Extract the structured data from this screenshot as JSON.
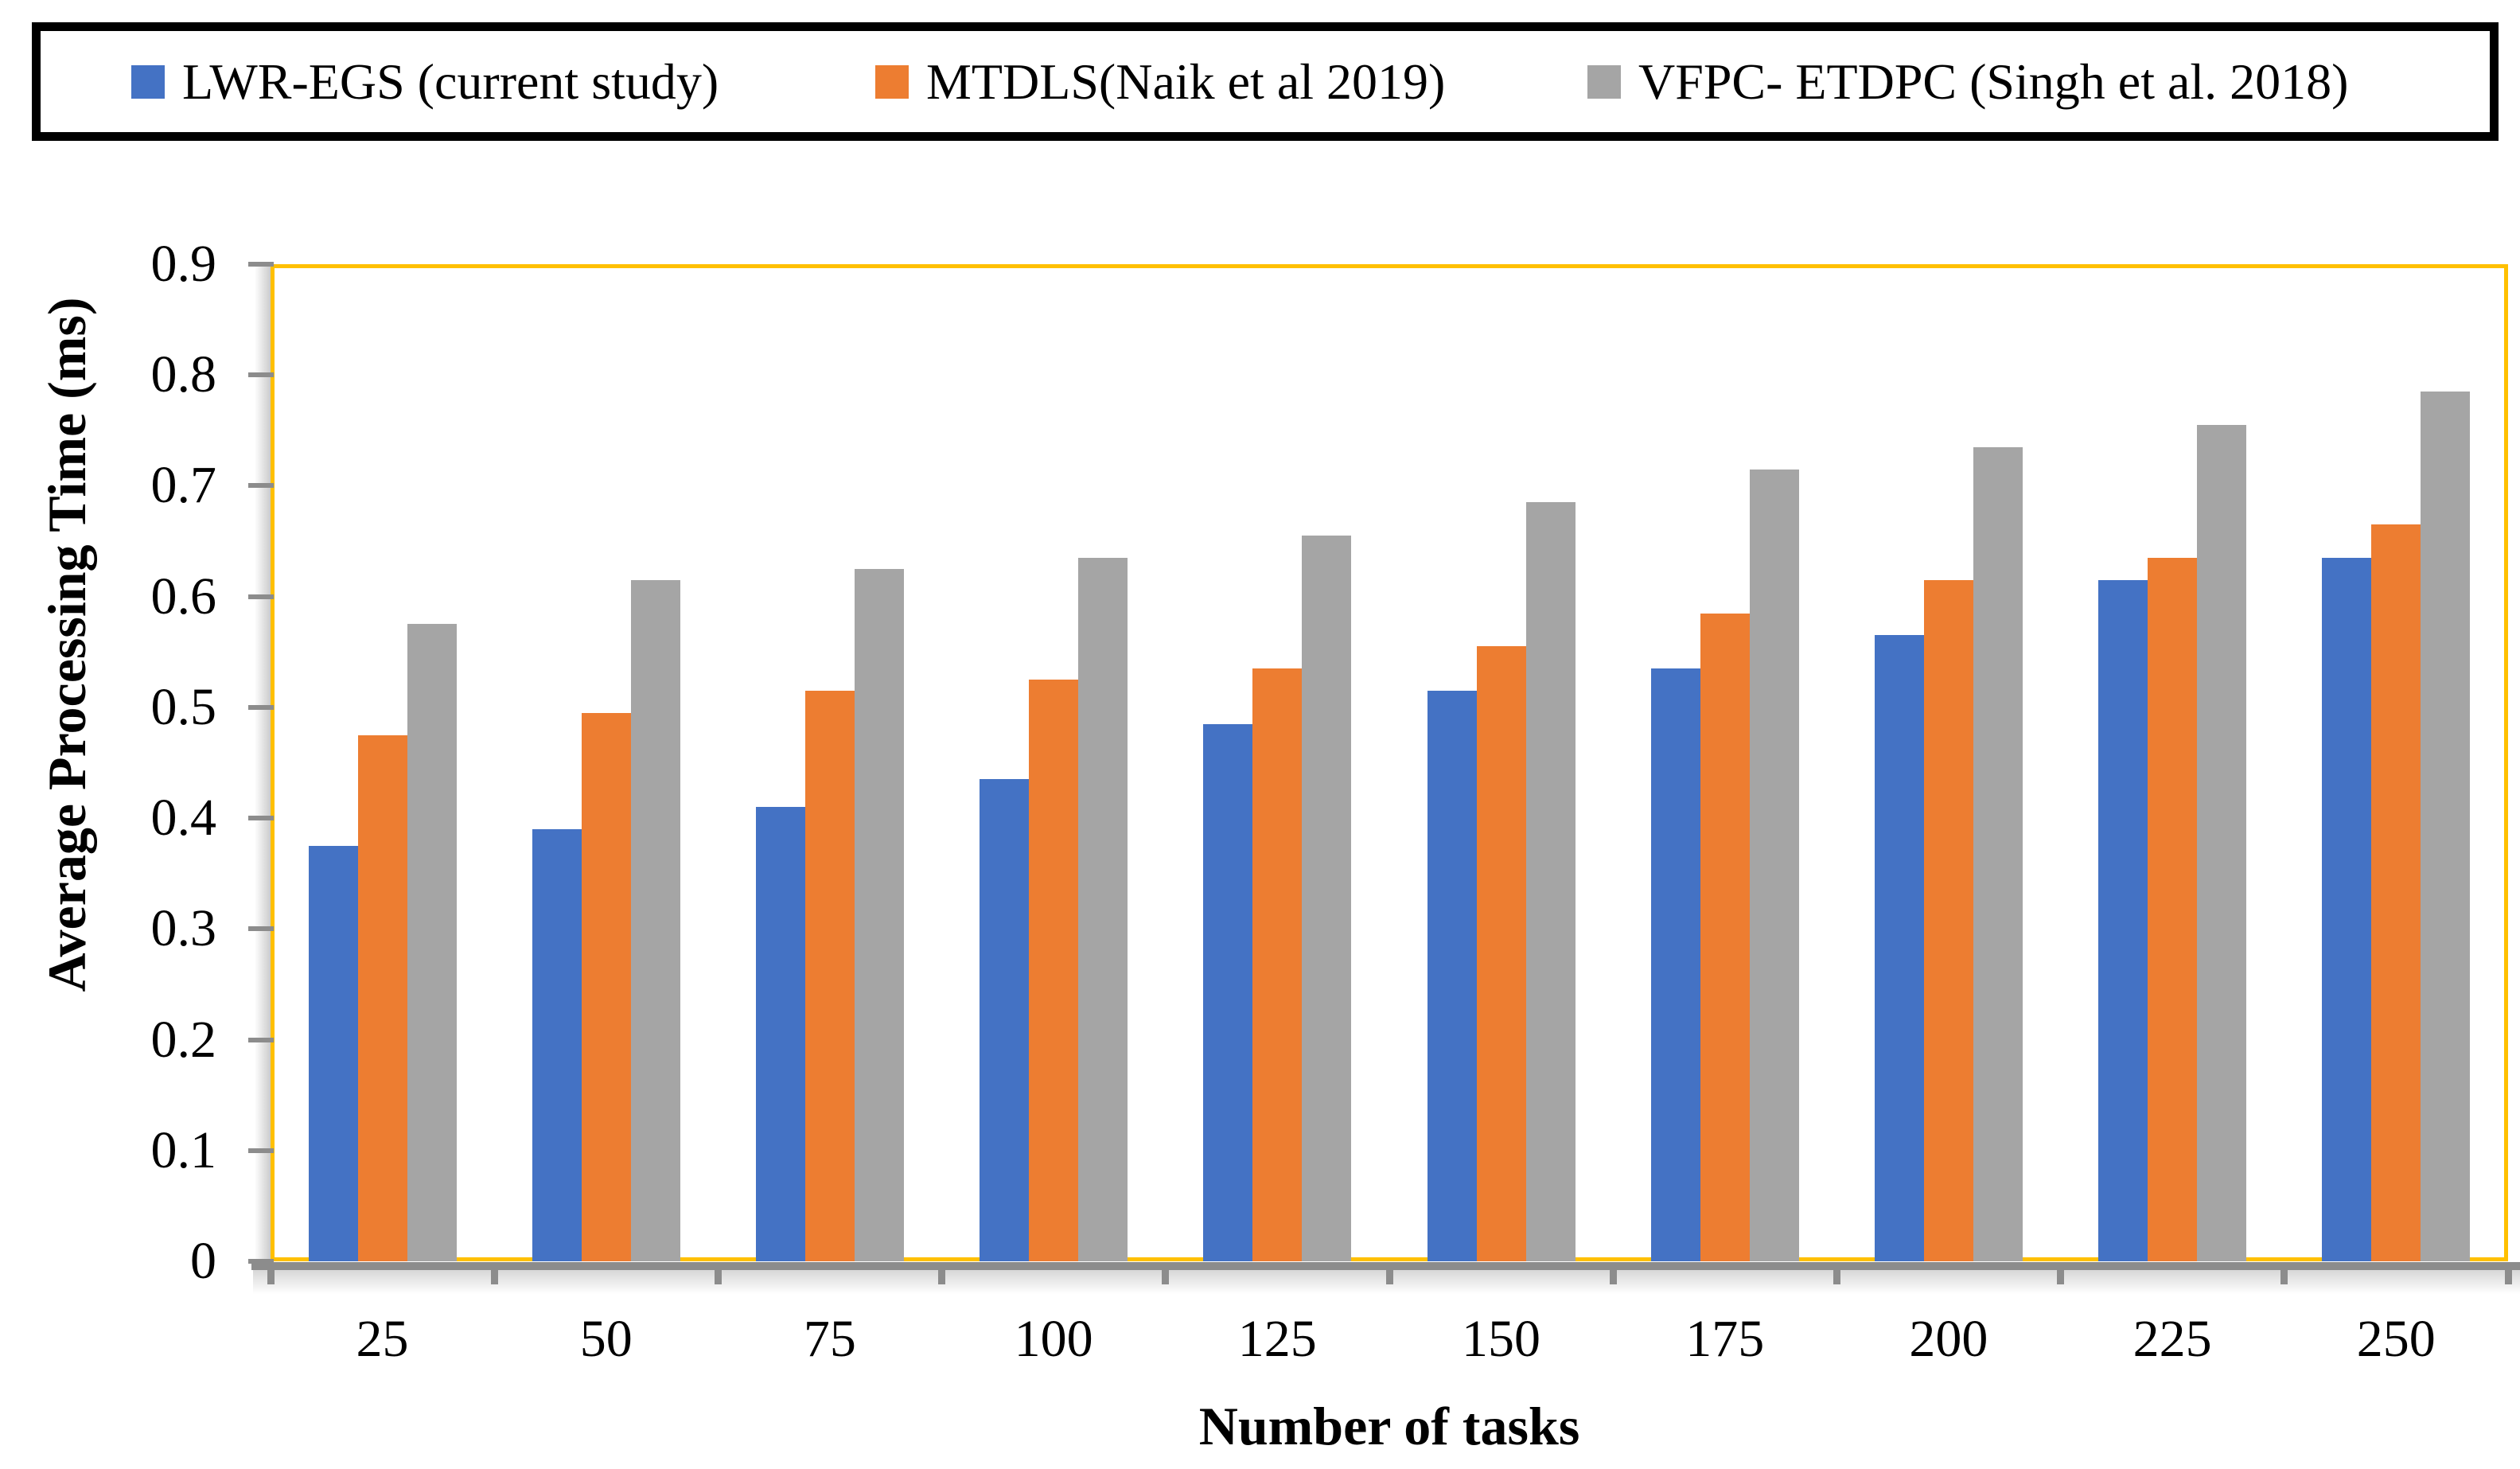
{
  "chart_data": {
    "type": "bar",
    "title": "",
    "xlabel": "Number of tasks",
    "ylabel": "Average Processing Time (ms)",
    "categories": [
      "25",
      "50",
      "75",
      "100",
      "125",
      "150",
      "175",
      "200",
      "225",
      "250"
    ],
    "series": [
      {
        "name": "LWR-EGS (current study)",
        "color": "#4472C4",
        "values": [
          0.375,
          0.39,
          0.41,
          0.435,
          0.485,
          0.515,
          0.535,
          0.565,
          0.615,
          0.635
        ]
      },
      {
        "name": "MTDLS(Naik et al 2019)",
        "color": "#ED7D31",
        "values": [
          0.475,
          0.495,
          0.515,
          0.525,
          0.535,
          0.555,
          0.585,
          0.615,
          0.635,
          0.665
        ]
      },
      {
        "name": "VFPC- ETDPC (Singh et al. 2018)",
        "color": "#A5A5A5",
        "values": [
          0.575,
          0.615,
          0.625,
          0.635,
          0.655,
          0.685,
          0.715,
          0.735,
          0.755,
          0.785
        ]
      }
    ],
    "ylim": [
      0,
      0.9
    ],
    "ytick_step": 0.1,
    "ytick_labels": [
      "0",
      "0.1",
      "0.2",
      "0.3",
      "0.4",
      "0.5",
      "0.6",
      "0.7",
      "0.8",
      "0.9"
    ],
    "grid": false,
    "legend_position": "top",
    "plot_border_color": "#FFC000",
    "axis_line_color": "#8C8C8C"
  }
}
